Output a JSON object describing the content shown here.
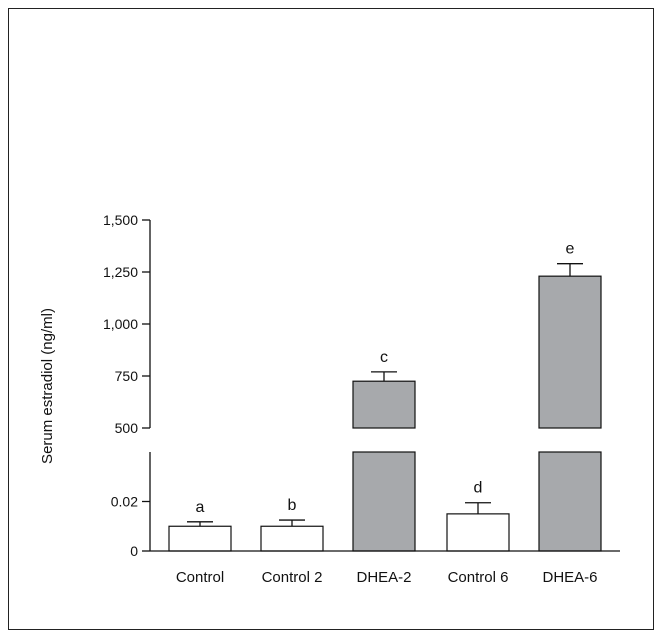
{
  "chart_data": {
    "type": "bar",
    "ylabel": "Serum estradiol (ng/ml)",
    "categories": [
      "Control",
      "Control 2",
      "DHEA-2",
      "Control 6",
      "DHEA-6"
    ],
    "values": [
      0.01,
      0.01,
      725,
      0.015,
      1230
    ],
    "errors": [
      0.0018,
      0.0025,
      45,
      0.0045,
      60
    ],
    "significance_letters": [
      "a",
      "b",
      "c",
      "d",
      "e"
    ],
    "bar_colors": [
      "#ffffff",
      "#ffffff",
      "#a7a9ac",
      "#ffffff",
      "#a7a9ac"
    ],
    "y_axis_break": true,
    "y_lower_segment": {
      "ylim": [
        0,
        0.04
      ],
      "ticks": [
        0,
        0.02
      ],
      "tick_labels": [
        "0",
        "0.02"
      ]
    },
    "y_upper_segment": {
      "ylim": [
        500,
        1500
      ],
      "ticks": [
        500,
        750,
        1000,
        1250,
        1500
      ],
      "tick_labels": [
        "500",
        "750",
        "1,000",
        "1,250",
        "1,500"
      ]
    }
  }
}
